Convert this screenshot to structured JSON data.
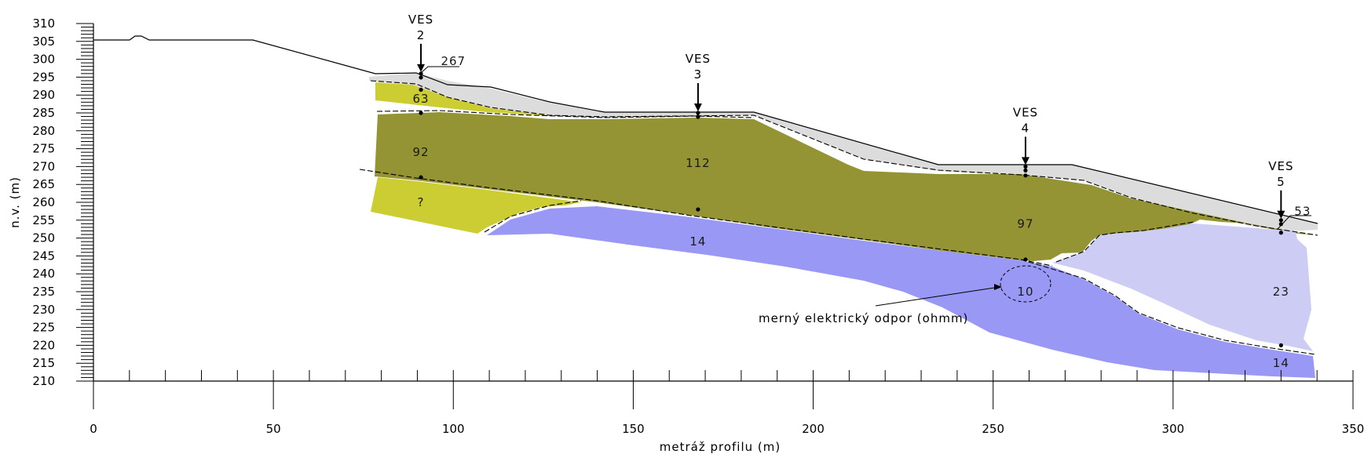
{
  "axes": {
    "ylabel": "n.v. (m)",
    "xlabel": "metráž profilu (m)",
    "xlim": [
      0,
      350
    ],
    "ylim": [
      210,
      310
    ],
    "xticks_labeled": [
      "0",
      "50",
      "100",
      "150",
      "200",
      "250",
      "300",
      "350"
    ],
    "yticks_labeled": [
      "310",
      "305",
      "300",
      "295",
      "290",
      "285",
      "280",
      "275",
      "270",
      "265",
      "260",
      "255",
      "250",
      "245",
      "240",
      "235",
      "230",
      "225",
      "220",
      "215",
      "210"
    ]
  },
  "ves": [
    {
      "name": "VES",
      "number": "2",
      "x": 91,
      "ground": 296
    },
    {
      "name": "VES",
      "number": "3",
      "x": 168,
      "ground": 285
    },
    {
      "name": "VES",
      "number": "4",
      "x": 259,
      "ground": 270
    },
    {
      "name": "VES",
      "number": "5",
      "x": 330,
      "ground": 255
    }
  ],
  "resistivity_values": [
    {
      "text": "267",
      "x": 100,
      "y": 299.5
    },
    {
      "text": "63",
      "x": 91,
      "y": 289
    },
    {
      "text": "92",
      "x": 91,
      "y": 274
    },
    {
      "text": "?",
      "x": 91,
      "y": 260
    },
    {
      "text": "112",
      "x": 168,
      "y": 271
    },
    {
      "text": "14",
      "x": 168,
      "y": 249
    },
    {
      "text": "97",
      "x": 259,
      "y": 254
    },
    {
      "text": "10",
      "x": 259,
      "y": 235
    },
    {
      "text": "23",
      "x": 330,
      "y": 235
    },
    {
      "text": "53",
      "x": 336,
      "y": 257.5
    },
    {
      "text": "14",
      "x": 330,
      "y": 215
    }
  ],
  "annotation": {
    "text": "merný elektrický odpor (ohmm)"
  },
  "colors": {
    "layer_yellow": "#cccc33",
    "layer_olive": "#949434",
    "layer_blue": "#9999f5",
    "layer_lightblue": "#ccccf5",
    "surface_layer": "#dcdcdc"
  }
}
